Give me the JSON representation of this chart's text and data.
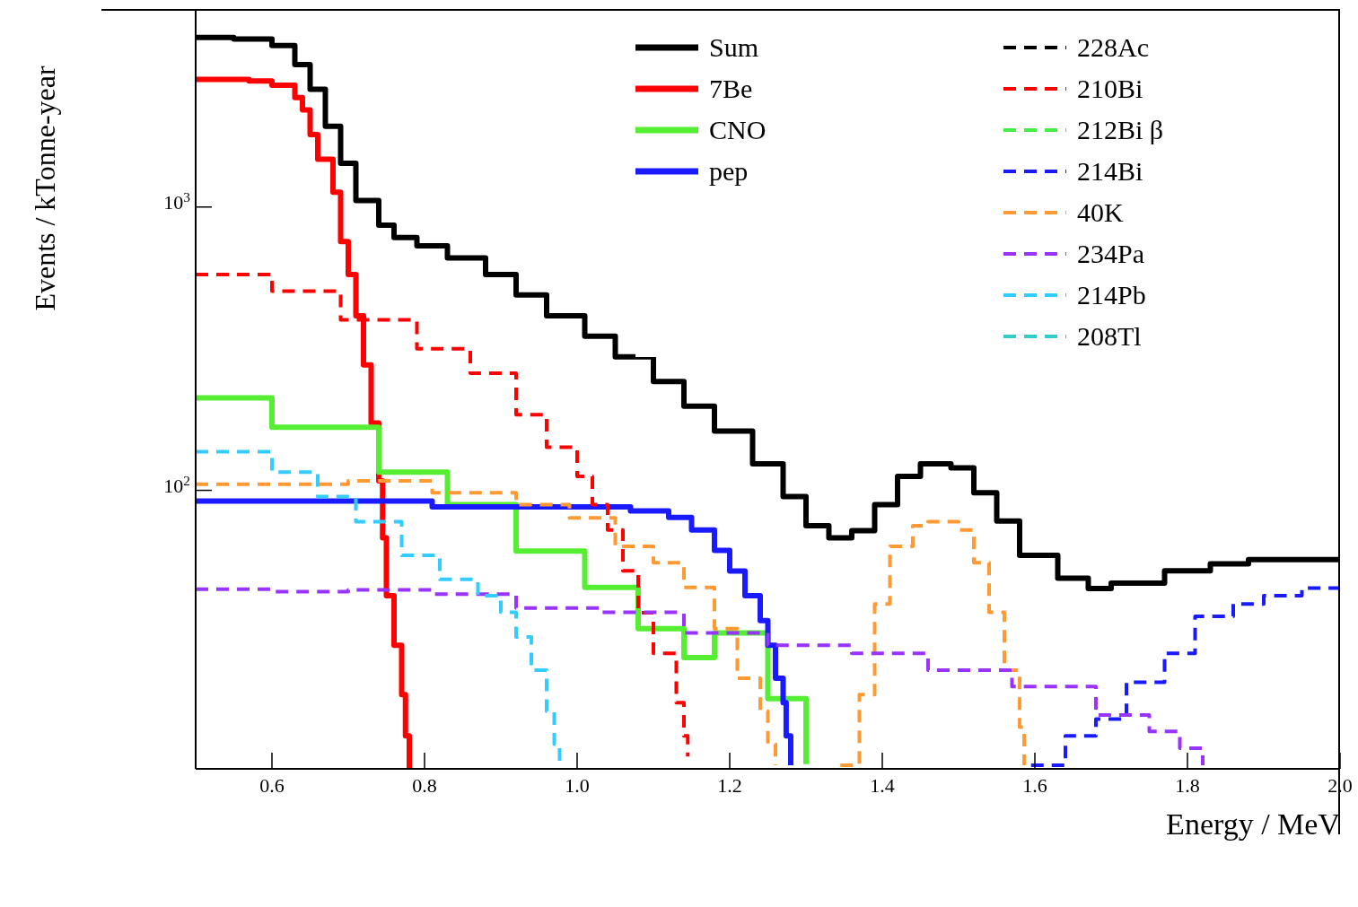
{
  "chart_data": {
    "type": "step",
    "xlabel": "Energy / MeV",
    "ylabel": "Events / kTonne-year",
    "log": "y",
    "legend": "top right",
    "marker": "none",
    "xlim": [
      0.5,
      2.0
    ],
    "ylim": [
      10.4,
      5000
    ],
    "xticks": [
      0.6,
      0.8,
      {
        "value": 1.0,
        "label": "1.0"
      },
      1.2,
      1.4,
      1.6,
      1.8,
      {
        "value": 2.0,
        "label": "2.0"
      }
    ],
    "yticks": [
      {
        "value": 100,
        "label": "10$^{2}$"
      },
      {
        "value": 1000,
        "label": "10$^{3}$"
      }
    ],
    "series": [
      {
        "name": "Sum",
        "color": "#000000",
        "line_style": "solid",
        "x": [
          0.5,
          0.55,
          0.6,
          0.63,
          0.65,
          0.67,
          0.69,
          0.71,
          0.74,
          0.76,
          0.79,
          0.83,
          0.88,
          0.92,
          0.96,
          1.01,
          1.05,
          1.1,
          1.14,
          1.18,
          1.23,
          1.27,
          1.3,
          1.33,
          1.36,
          1.39,
          1.42,
          1.45,
          1.49,
          1.52,
          1.55,
          1.58,
          1.63,
          1.67,
          1.7,
          1.77,
          1.83,
          1.88,
          1.92,
          2.0
        ],
        "values": [
          3970,
          3917,
          3715,
          3184,
          2606,
          1928,
          1426,
          1055,
          863,
          780,
          730,
          661,
          578,
          489,
          413,
          350,
          296,
          242,
          198,
          162,
          124,
          95,
          75,
          68,
          72,
          89,
          112,
          124,
          120,
          98,
          78,
          59,
          49,
          45,
          47,
          52,
          55,
          57,
          57,
          57
        ]
      },
      {
        "name": "7Be",
        "color": "#ff0000",
        "line_style": "solid",
        "x": [
          0.5,
          0.57,
          0.6,
          0.63,
          0.64,
          0.65,
          0.66,
          0.68,
          0.69,
          0.7,
          0.71,
          0.72,
          0.73,
          0.74,
          0.745,
          0.75,
          0.76,
          0.77,
          0.775,
          0.78
        ],
        "values": [
          2823,
          2787,
          2692,
          2436,
          2203,
          1803,
          1475,
          1128,
          755,
          578,
          413,
          277,
          173,
          108,
          68,
          42.5,
          28.4,
          19,
          13.6,
          10.4
        ]
      },
      {
        "name": "CNO",
        "color": "#55ee33",
        "line_style": "solid",
        "x": [
          0.5,
          0.6,
          0.74,
          0.83,
          0.92,
          1.01,
          1.08,
          1.14,
          1.18,
          1.25,
          1.3
        ],
        "values": [
          212,
          167,
          116,
          89,
          61,
          45.4,
          32.5,
          25.7,
          31.4,
          18.4,
          10.8
        ]
      },
      {
        "name": "pep",
        "color": "#1a1aff",
        "line_style": "solid",
        "x": [
          0.5,
          0.81,
          1.07,
          1.12,
          1.15,
          1.18,
          1.2,
          1.22,
          1.24,
          1.25,
          1.26,
          1.27,
          1.274,
          1.28
        ],
        "values": [
          91.7,
          87.5,
          84.6,
          80.2,
          72.5,
          61.4,
          51.9,
          42.5,
          34.7,
          28.4,
          21.7,
          17.8,
          13.6,
          10.7
        ]
      },
      {
        "name": "228Ac",
        "color": "#000000",
        "line_style": "dashed"
      },
      {
        "name": "210Bi",
        "color": "#ff0000",
        "line_style": "dashed",
        "x": [
          0.5,
          0.6,
          0.69,
          0.79,
          0.86,
          0.92,
          0.96,
          1.0,
          1.02,
          1.04,
          1.06,
          1.08,
          1.1,
          1.13,
          1.14,
          1.145
        ],
        "values": [
          578,
          505,
          400,
          316,
          259,
          185,
          142,
          112,
          89,
          72.5,
          52,
          37,
          26.6,
          17.8,
          13.6,
          11.5
        ]
      },
      {
        "name": "212Bi β",
        "color": "#44ee44",
        "line_style": "dashed"
      },
      {
        "name": "214Bi",
        "color": "#1a1aff",
        "line_style": "dashed",
        "x": [
          1.595,
          1.64,
          1.68,
          1.72,
          1.77,
          1.81,
          1.86,
          1.9,
          1.95,
          2.0
        ],
        "values": [
          10.7,
          13.6,
          15.6,
          21,
          26.6,
          35.9,
          39.7,
          42.5,
          45.2,
          46
        ]
      },
      {
        "name": "40K",
        "color": "#ff9933",
        "line_style": "dashed",
        "x": [
          0.5,
          0.6,
          0.7,
          0.81,
          0.92,
          0.99,
          1.05,
          1.1,
          1.14,
          1.18,
          1.21,
          1.24,
          1.25,
          1.26,
          1.3,
          1.345,
          1.37,
          1.39,
          1.41,
          1.44,
          1.46,
          1.5,
          1.52,
          1.54,
          1.56,
          1.58,
          1.586
        ],
        "values": [
          105,
          105,
          108,
          98,
          89,
          80,
          63.4,
          55.5,
          45.4,
          32.5,
          21.7,
          16.6,
          12.7,
          10.7,
          null,
          10.7,
          19,
          39.7,
          63.4,
          75,
          77.5,
          72.5,
          55.5,
          37.1,
          23.2,
          14.6,
          10.7
        ]
      },
      {
        "name": "234Pa",
        "color": "#9933ff",
        "line_style": "dashed",
        "x": [
          0.5,
          0.6,
          0.7,
          0.81,
          0.92,
          1.03,
          1.14,
          1.25,
          1.36,
          1.46,
          1.57,
          1.68,
          1.75,
          1.79,
          1.82
        ],
        "values": [
          44.8,
          43.9,
          44.5,
          43,
          38.4,
          37.1,
          31.4,
          28.4,
          26.6,
          23.2,
          20.3,
          16.1,
          14.1,
          12.3,
          10.7
        ]
      },
      {
        "name": "214Pb",
        "color": "#33ccff",
        "line_style": "dashed",
        "x": [
          0.5,
          0.6,
          0.66,
          0.71,
          0.77,
          0.82,
          0.87,
          0.9,
          0.92,
          0.94,
          0.96,
          0.97,
          0.977
        ],
        "values": [
          137,
          116,
          95,
          77.5,
          59,
          48.5,
          42.5,
          37.1,
          30.4,
          23.2,
          16.6,
          12.7,
          10.7
        ]
      },
      {
        "name": "208Tl",
        "color": "#33cccc",
        "line_style": "dashed"
      }
    ]
  }
}
